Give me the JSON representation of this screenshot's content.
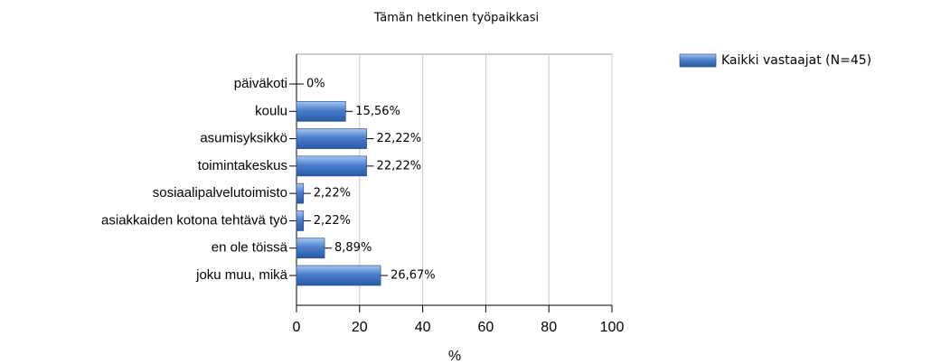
{
  "chart_data": {
    "type": "bar",
    "orientation": "horizontal",
    "title": "Tämän hetkinen työpaikkasi",
    "categories": [
      "päiväkoti",
      "koulu",
      "asumisyksikkö",
      "toimintakeskus",
      "sosiaalipalvelutoimisto",
      "asiakkaiden kotona tehtävä työ",
      "en ole töissä",
      "joku muu, mikä"
    ],
    "series": [
      {
        "name": "Kaikki vastaajat (N=45)",
        "color": "#4a7ecb",
        "values": [
          0,
          15.56,
          22.22,
          22.22,
          2.22,
          2.22,
          8.89,
          26.67
        ],
        "value_labels": [
          "0%",
          "15,56%",
          "22,22%",
          "22,22%",
          "2,22%",
          "2,22%",
          "8,89%",
          "26,67%"
        ]
      }
    ],
    "xlabel": "%",
    "xlim": [
      0,
      100
    ],
    "xticks": [
      0,
      20,
      40,
      60,
      80,
      100
    ],
    "grid": true,
    "legend": "upper right"
  }
}
